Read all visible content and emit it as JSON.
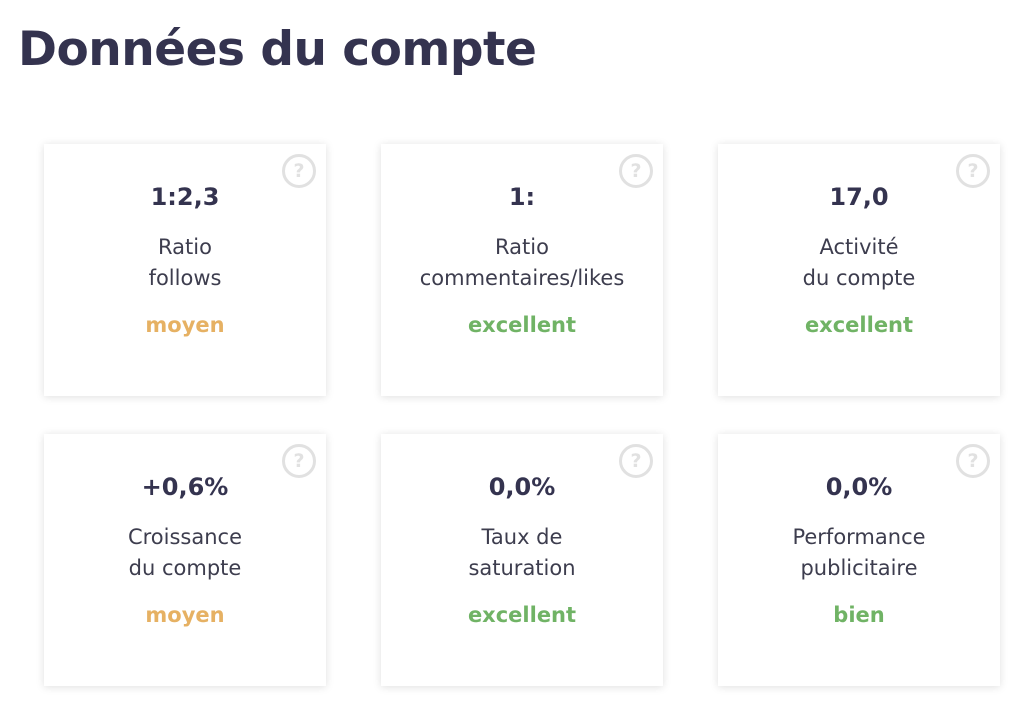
{
  "page": {
    "title": "Données du compte"
  },
  "colors": {
    "title": "#34334f",
    "moyen": "#e6b163",
    "excellent": "#70b365",
    "bien": "#70b365",
    "help_icon": "#e1e1e1"
  },
  "cards": [
    {
      "value": "1:2,3",
      "label_line1": "Ratio",
      "label_line2": "follows",
      "rating": "moyen",
      "help_icon": "question-circle-icon",
      "help_glyph": "?"
    },
    {
      "value": "1:",
      "label_line1": "Ratio",
      "label_line2": "commentaires/likes",
      "rating": "excellent",
      "help_icon": "question-circle-icon",
      "help_glyph": "?"
    },
    {
      "value": "17,0",
      "label_line1": "Activité",
      "label_line2": "du compte",
      "rating": "excellent",
      "help_icon": "question-circle-icon",
      "help_glyph": "?"
    },
    {
      "value": "+0,6%",
      "label_line1": "Croissance",
      "label_line2": "du compte",
      "rating": "moyen",
      "help_icon": "question-circle-icon",
      "help_glyph": "?"
    },
    {
      "value": "0,0%",
      "label_line1": "Taux de",
      "label_line2": "saturation",
      "rating": "excellent",
      "help_icon": "question-circle-icon",
      "help_glyph": "?"
    },
    {
      "value": "0,0%",
      "label_line1": "Performance",
      "label_line2": "publicitaire",
      "rating": "bien",
      "help_icon": "question-circle-icon",
      "help_glyph": "?"
    }
  ]
}
